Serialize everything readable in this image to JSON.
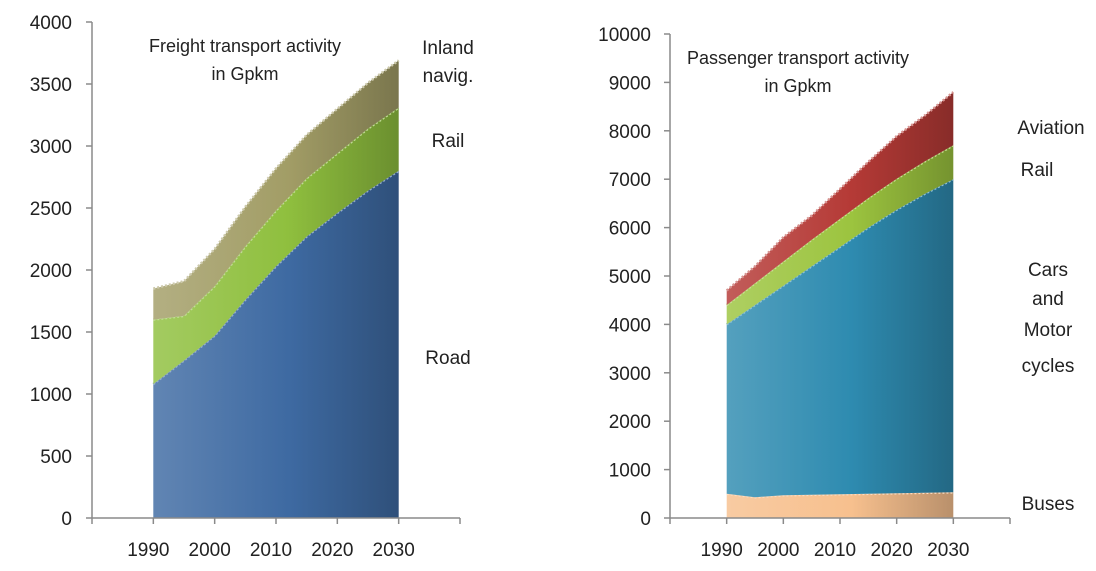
{
  "chart_data": [
    {
      "type": "area",
      "stacked": true,
      "title_lines": [
        "Freight transport activity",
        "in Gpkm"
      ],
      "xlabel": "",
      "ylabel": "",
      "x": [
        1990,
        1995,
        2000,
        2005,
        2010,
        2015,
        2020,
        2025,
        2030
      ],
      "xticks": [
        1990,
        2000,
        2010,
        2020,
        2030
      ],
      "xlim": [
        1980,
        2040
      ],
      "yticks": [
        0,
        500,
        1000,
        1500,
        2000,
        2500,
        3000,
        3500,
        4000
      ],
      "ylim": [
        0,
        4000
      ],
      "grid": false,
      "legend": "none",
      "series": [
        {
          "name": "Road",
          "label_lines": [
            "Road"
          ],
          "color": "#3e6aa2",
          "values": [
            1080,
            1270,
            1470,
            1760,
            2030,
            2270,
            2460,
            2640,
            2800
          ]
        },
        {
          "name": "Rail",
          "label_lines": [
            "Rail"
          ],
          "color": "#8fbf3e",
          "values": [
            520,
            360,
            400,
            430,
            450,
            470,
            480,
            500,
            510
          ]
        },
        {
          "name": "Inland navig.",
          "label_lines": [
            "Inland",
            "navig."
          ],
          "color": "#a29d66",
          "values": [
            250,
            280,
            300,
            320,
            340,
            350,
            360,
            370,
            380
          ]
        }
      ]
    },
    {
      "type": "area",
      "stacked": true,
      "title_lines": [
        "Passenger transport activity",
        "in Gpkm"
      ],
      "xlabel": "",
      "ylabel": "",
      "x": [
        1990,
        1995,
        2000,
        2005,
        2010,
        2015,
        2020,
        2025,
        2030
      ],
      "xticks": [
        1990,
        2000,
        2010,
        2020,
        2030
      ],
      "xlim": [
        1980,
        2040
      ],
      "yticks": [
        0,
        1000,
        2000,
        3000,
        4000,
        5000,
        6000,
        7000,
        8000,
        9000,
        10000
      ],
      "ylim": [
        0,
        10000
      ],
      "grid": false,
      "legend": "none",
      "series": [
        {
          "name": "Buses",
          "label_lines": [
            "Buses"
          ],
          "color": "#f7c08e",
          "values": [
            500,
            430,
            470,
            480,
            490,
            500,
            510,
            520,
            530
          ]
        },
        {
          "name": "Cars and Motor cycles",
          "label_lines": [
            "Cars",
            "and",
            "Motor",
            "cycles"
          ],
          "color": "#2e8bb0",
          "values": [
            3500,
            3970,
            4330,
            4720,
            5110,
            5500,
            5860,
            6180,
            6470
          ]
        },
        {
          "name": "Rail",
          "label_lines": [
            "Rail"
          ],
          "color": "#9cc43f",
          "values": [
            400,
            450,
            500,
            550,
            580,
            610,
            640,
            670,
            700
          ]
        },
        {
          "name": "Aviation",
          "label_lines": [
            "Aviation"
          ],
          "color": "#b53a36",
          "values": [
            300,
            350,
            500,
            500,
            620,
            750,
            880,
            950,
            1100
          ]
        }
      ]
    }
  ]
}
